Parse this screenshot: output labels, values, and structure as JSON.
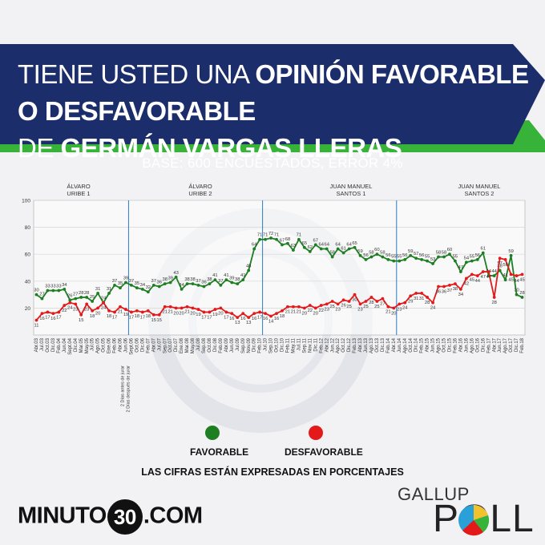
{
  "header": {
    "title_line1_light": "TIENE USTED UNA ",
    "title_line1_bold": "OPINIÓN FAVORABLE O DESFAVORABLE",
    "title_line2_light": "DE ",
    "title_line2_bold": "GERMÁN VARGAS LLERAS",
    "subtitle": "BASE: 600 ENCUESTADOS, ERROR 4%"
  },
  "colors": {
    "favorable": "#1e7e22",
    "desfavorable": "#e41a1a",
    "navy": "#1c2d6b",
    "green_band": "#37b33a"
  },
  "periods": [
    {
      "line1": "ÁLVARO",
      "line2": "URIBE 1"
    },
    {
      "line1": "ÁLVARO",
      "line2": "URIBE 2"
    },
    {
      "line1": "JUAN MANUEL",
      "line2": "SANTOS 1"
    },
    {
      "line1": "JUAN MANUEL",
      "line2": "SANTOS 2"
    }
  ],
  "legend": {
    "favorable": "FAVORABLE",
    "desfavorable": "DESFAVORABLE"
  },
  "note": "LAS CIFRAS ESTÁN EXPRESADAS EN PORCENTAJES",
  "brand": {
    "prefix": "MINUTO",
    "number": "30",
    "suffix": ".COM"
  },
  "gallup": {
    "top": "GALLUP",
    "bottom": "POLL"
  },
  "chart_data": {
    "type": "line",
    "title": "",
    "xlabel": "",
    "ylabel": "",
    "ylim": [
      0,
      100
    ],
    "yticks": [
      20,
      40,
      60,
      80,
      100
    ],
    "x": [
      "Abr.03",
      "Jul.03",
      "Oct.03",
      "Dic.03",
      "Feb.04",
      "Jun.04",
      "Sept.04",
      "Dic.04",
      "Mar.05",
      "May.05",
      "Jul.05",
      "Ago.05",
      "Oct.05",
      "Ene.06",
      "Feb.06",
      "Abr.06",
      "Jun.06",
      "Sept.06",
      "Oct.06",
      "Dic.06",
      "Feb.07",
      "Abr.07",
      "Jul.07",
      "Sep.07",
      "Oct.07",
      "Dic.07",
      "Ene.08",
      "Mar.08",
      "May.08",
      "Jul.08",
      "Sep.08",
      "Oct.08",
      "Dic.08",
      "Feb.09",
      "Abr.09",
      "Jun.09",
      "Jul.09",
      "Sep.09",
      "Nov.09",
      "Dic.09",
      "Feb.10",
      "Jul.10",
      "Sep.10",
      "Oct.10",
      "Dic.10",
      "Feb.11",
      "May.11",
      "Jul.11",
      "Sep.11",
      "Nov.11",
      "Dic.11",
      "Feb.12",
      "Abr.12",
      "Jun.12",
      "Ago.12",
      "Oct.12",
      "Dic.12",
      "Feb.13",
      "Abr.13",
      "Jun.13",
      "Ago.13",
      "Oct.13",
      "Dic.13",
      "Feb.14",
      "Abr.14",
      "Jun.14",
      "Ago.14",
      "Oct.14",
      "Dic.14",
      "Feb.15",
      "Abr.15",
      "Jun.15",
      "Ago.15",
      "Oct.15",
      "Dic.15",
      "Feb.16",
      "Abr.16",
      "Jun.16",
      "Ago.16",
      "Oct.16",
      "Dic.16",
      "Feb.17",
      "Abr.17",
      "Jun.17",
      "Ago.17",
      "Oct.17",
      "Dic.17",
      "Feb.18"
    ],
    "extra_xlabels": [
      "2 Días antes de jurar",
      "2 Días después de jurar"
    ],
    "period_boundaries": [
      16.5,
      40.5,
      64.5
    ],
    "series": [
      {
        "name": "FAVORABLE",
        "values": [
          30,
          27,
          33,
          33,
          33,
          34,
          26,
          27,
          28,
          28,
          25,
          31,
          24,
          31,
          37,
          35,
          39,
          37,
          35,
          34,
          32,
          37,
          36,
          38,
          39,
          43,
          34,
          38,
          38,
          37,
          36,
          38,
          41,
          37,
          41,
          39,
          38,
          41,
          48,
          64,
          71,
          71,
          72,
          71,
          67,
          68,
          63,
          71,
          65,
          62,
          67,
          64,
          64,
          58,
          64,
          61,
          64,
          65,
          59,
          56,
          58,
          60,
          58,
          56,
          55,
          55,
          56,
          59,
          57,
          56,
          55,
          53,
          58,
          58,
          60,
          55,
          47,
          54,
          55,
          56,
          61,
          44,
          44,
          48,
          41,
          59,
          30,
          28
        ]
      },
      {
        "name": "DESFAVORABLE",
        "values": [
          11,
          16,
          17,
          16,
          17,
          22,
          24,
          23,
          15,
          23,
          18,
          20,
          24,
          18,
          17,
          21,
          19,
          17,
          18,
          17,
          18,
          15,
          15,
          21,
          21,
          20,
          20,
          21,
          20,
          19,
          17,
          17,
          19,
          20,
          17,
          16,
          13,
          16,
          13,
          16,
          17,
          16,
          14,
          16,
          18,
          21,
          21,
          21,
          20,
          22,
          20,
          22,
          23,
          25,
          23,
          26,
          25,
          30,
          23,
          25,
          28,
          25,
          27,
          21,
          20,
          23,
          24,
          29,
          31,
          31,
          28,
          24,
          36,
          36,
          37,
          38,
          34,
          42,
          45,
          44,
          47,
          47,
          28,
          57,
          56,
          45,
          44,
          45
        ]
      }
    ]
  }
}
